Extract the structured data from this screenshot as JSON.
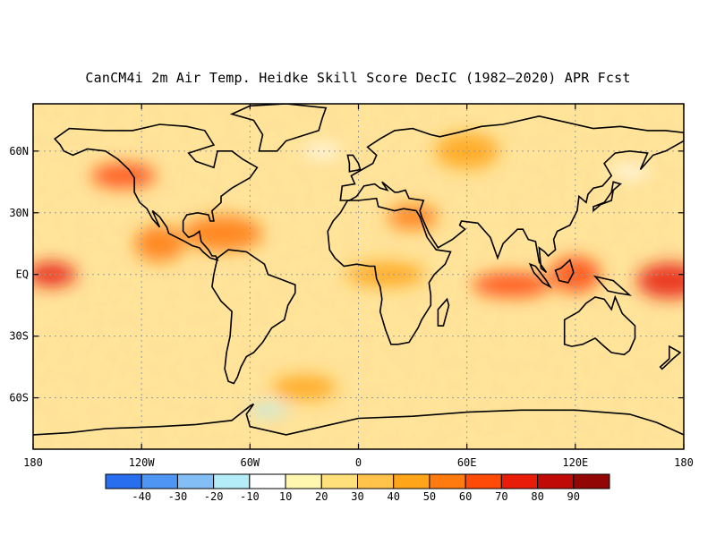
{
  "title": "CanCM4i 2m Air Temp. Heidke Skill Score DecIC (1982–2020) APR Fcst",
  "map": {
    "projection": "cylindrical equidistant",
    "lon_range": [
      -180,
      180
    ],
    "lat_range": [
      -85,
      83
    ],
    "lat_ticks": [
      {
        "value": 60,
        "label": "60N"
      },
      {
        "value": 30,
        "label": "30N"
      },
      {
        "value": 0,
        "label": "EQ"
      },
      {
        "value": -30,
        "label": "30S"
      },
      {
        "value": -60,
        "label": "60S"
      }
    ],
    "lon_ticks": [
      {
        "value": -180,
        "label": "180"
      },
      {
        "value": -120,
        "label": "120W"
      },
      {
        "value": -60,
        "label": "60W"
      },
      {
        "value": 0,
        "label": "0"
      },
      {
        "value": 60,
        "label": "60E"
      },
      {
        "value": 120,
        "label": "120E"
      },
      {
        "value": 180,
        "label": "180"
      }
    ],
    "gridlines": "dotted at 30 degree intervals",
    "coastlines": "black"
  },
  "colorbar": {
    "colors": [
      "#2a6ef0",
      "#4f96f4",
      "#84bef7",
      "#b4ecf8",
      "#ffffff",
      "#fff6b0",
      "#ffe07a",
      "#ffc24a",
      "#ffa51a",
      "#ff7a0f",
      "#ff4a08",
      "#e81c08",
      "#c00a08",
      "#920606"
    ],
    "labels": [
      "-40",
      "-30",
      "-20",
      "-10",
      "10",
      "20",
      "30",
      "40",
      "50",
      "60",
      "70",
      "80",
      "90"
    ]
  },
  "chart_data": {
    "type": "heatmap",
    "variable": "Heidke Skill Score",
    "levels": [
      -40,
      -30,
      -20,
      -10,
      10,
      20,
      30,
      40,
      50,
      60,
      70,
      80,
      90
    ],
    "high_skill_regions": [
      {
        "lon": -170,
        "lat": 0,
        "value": 70
      },
      {
        "lon": 172,
        "lat": -3,
        "value": 75
      },
      {
        "lon": 85,
        "lat": -5,
        "value": 65
      },
      {
        "lon": 120,
        "lat": 0,
        "value": 60
      },
      {
        "lon": -130,
        "lat": 48,
        "value": 60
      },
      {
        "lon": -75,
        "lat": 20,
        "value": 55
      },
      {
        "lon": 30,
        "lat": 28,
        "value": 50
      },
      {
        "lon": 60,
        "lat": 60,
        "value": 45
      },
      {
        "lon": 15,
        "lat": 0,
        "value": 45
      },
      {
        "lon": -110,
        "lat": 15,
        "value": 50
      },
      {
        "lon": -30,
        "lat": -55,
        "value": 45
      }
    ],
    "low_skill_regions": [
      {
        "lon": -50,
        "lat": -66,
        "value": -15
      },
      {
        "lon": 150,
        "lat": 50,
        "value": -10
      },
      {
        "lon": -20,
        "lat": 60,
        "value": -10
      }
    ]
  }
}
